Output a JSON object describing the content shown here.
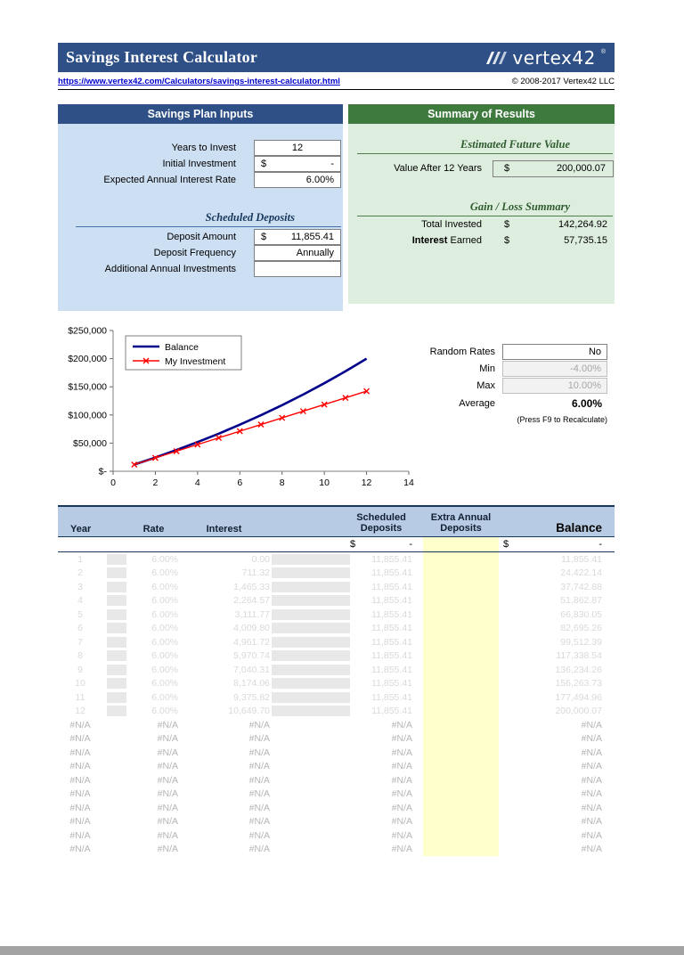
{
  "header": {
    "title": "Savings Interest Calculator",
    "brand": "vertex42",
    "brand_mark": "®",
    "url": "https://www.vertex42.com/Calculators/savings-interest-calculator.html",
    "copyright": "© 2008-2017 Vertex42 LLC"
  },
  "colors": {
    "header_blue": "#2E5086",
    "header_green": "#3E7A3E",
    "input_panel_bg": "#CDDFF2",
    "summary_panel_bg": "#DEEEDE",
    "table_header_bg": "#B7CCE4",
    "extra_deposit_cell": "#FFFFCC"
  },
  "inputs": {
    "header": "Savings Plan Inputs",
    "years_label": "Years to Invest",
    "years_value": "12",
    "initial_label": "Initial Investment",
    "initial_dollar": "$",
    "initial_value": "-",
    "rate_label": "Expected Annual Interest Rate",
    "rate_value": "6.00%",
    "scheduled_title": "Scheduled Deposits",
    "deposit_label": "Deposit Amount",
    "deposit_dollar": "$",
    "deposit_value": "11,855.41",
    "frequency_label": "Deposit Frequency",
    "frequency_value": "Annually",
    "additional_label": "Additional Annual Investments",
    "additional_value": ""
  },
  "summary": {
    "header": "Summary of Results",
    "efv_title": "Estimated Future Value",
    "value_label": "Value After 12 Years",
    "value_dollar": "$",
    "value_amount": "200,000.07",
    "gl_title": "Gain / Loss Summary",
    "invested_label": "Total Invested",
    "invested_dollar": "$",
    "invested_amount": "142,264.92",
    "interest_word": "Interest",
    "interest_rest": " Earned",
    "interest_dollar": "$",
    "interest_amount": "57,735.15"
  },
  "random": {
    "label": "Random Rates",
    "value": "No",
    "min_label": "Min",
    "min_value": "-4.00%",
    "max_label": "Max",
    "max_value": "10.00%",
    "avg_label": "Average",
    "avg_value": "6.00%",
    "note": "(Press F9 to Recalculate)"
  },
  "chart_data": {
    "type": "line",
    "title": "",
    "xlabel": "",
    "ylabel": "",
    "xlim": [
      0,
      14
    ],
    "ylim": [
      0,
      250000
    ],
    "x_ticks": [
      0,
      2,
      4,
      6,
      8,
      10,
      12,
      14
    ],
    "y_tick_values": [
      0,
      50000,
      100000,
      150000,
      200000,
      250000
    ],
    "y_tick_labels": [
      "$-",
      "$50,000",
      "$100,000",
      "$150,000",
      "$200,000",
      "$250,000"
    ],
    "grid": false,
    "legend_position": "top-left",
    "x": [
      1,
      2,
      3,
      4,
      5,
      6,
      7,
      8,
      9,
      10,
      11,
      12
    ],
    "series": [
      {
        "name": "Balance",
        "color": "#00008B",
        "marker": null,
        "values": [
          11855.41,
          24422.14,
          37742.88,
          51862.87,
          66830.05,
          82695.26,
          99512.39,
          117338.54,
          136234.26,
          156263.73,
          177494.96,
          200000.07
        ]
      },
      {
        "name": "My Investment",
        "color": "#FF0000",
        "marker": "x",
        "values": [
          11855.41,
          23710.82,
          35566.23,
          47421.64,
          59277.05,
          71132.46,
          82987.87,
          94843.28,
          106698.69,
          118554.1,
          130409.51,
          142264.92
        ]
      }
    ]
  },
  "table": {
    "headers": {
      "year": "Year",
      "rate": "Rate",
      "interest": "Interest",
      "scheduled": [
        "Scheduled",
        "Deposits"
      ],
      "extra": [
        "Extra Annual",
        "Deposits"
      ],
      "balance": "Balance"
    },
    "subrow": {
      "scheduled_dollar": "$",
      "scheduled_value": "-",
      "balance_dollar": "$",
      "balance_value": "-"
    },
    "rows": [
      {
        "year": "1",
        "rate": "6.00%",
        "interest": "0.00",
        "deposit": "11,855.41",
        "balance": "11,855.41"
      },
      {
        "year": "2",
        "rate": "6.00%",
        "interest": "711.32",
        "deposit": "11,855.41",
        "balance": "24,422.14"
      },
      {
        "year": "3",
        "rate": "6.00%",
        "interest": "1,465.33",
        "deposit": "11,855.41",
        "balance": "37,742.88"
      },
      {
        "year": "4",
        "rate": "6.00%",
        "interest": "2,264.57",
        "deposit": "11,855.41",
        "balance": "51,862.87"
      },
      {
        "year": "5",
        "rate": "6.00%",
        "interest": "3,111.77",
        "deposit": "11,855.41",
        "balance": "66,830.05"
      },
      {
        "year": "6",
        "rate": "6.00%",
        "interest": "4,009.80",
        "deposit": "11,855.41",
        "balance": "82,695.26"
      },
      {
        "year": "7",
        "rate": "6.00%",
        "interest": "4,961.72",
        "deposit": "11,855.41",
        "balance": "99,512.39"
      },
      {
        "year": "8",
        "rate": "6.00%",
        "interest": "5,970.74",
        "deposit": "11,855.41",
        "balance": "117,338.54"
      },
      {
        "year": "9",
        "rate": "6.00%",
        "interest": "7,040.31",
        "deposit": "11,855.41",
        "balance": "136,234.26"
      },
      {
        "year": "10",
        "rate": "6.00%",
        "interest": "8,174.06",
        "deposit": "11,855.41",
        "balance": "156,263.73"
      },
      {
        "year": "11",
        "rate": "6.00%",
        "interest": "9,375.82",
        "deposit": "11,855.41",
        "balance": "177,494.96"
      },
      {
        "year": "12",
        "rate": "6.00%",
        "interest": "10,649.70",
        "deposit": "11,855.41",
        "balance": "200,000.07"
      }
    ],
    "na_text": "#N/A",
    "na_row_count": 10
  }
}
